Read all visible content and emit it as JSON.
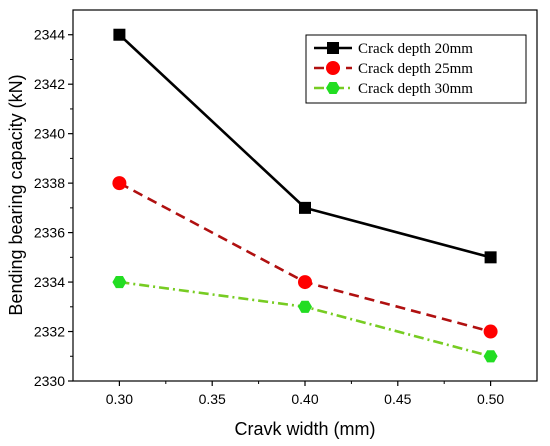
{
  "chart_data": {
    "type": "line",
    "title": "",
    "xlabel": "Cravk width (mm)",
    "ylabel": "Bending bearing capacity (kN)",
    "xlim": [
      0.275,
      0.525
    ],
    "ylim": [
      2330,
      2345
    ],
    "xticks": [
      "0.30",
      "0.35",
      "0.40",
      "0.45",
      "0.50"
    ],
    "yticks": [
      "2330",
      "2332",
      "2334",
      "2336",
      "2338",
      "2340",
      "2342",
      "2344"
    ],
    "legend_position": "top-right",
    "x": [
      0.3,
      0.4,
      0.5
    ],
    "series": [
      {
        "name": "Crack depth 20mm",
        "values": [
          2344,
          2337,
          2335
        ],
        "color": "#000000",
        "marker": "square",
        "line_style": "solid"
      },
      {
        "name": "Crack depth 25mm",
        "values": [
          2338,
          2334,
          2332
        ],
        "color": "#ff0000",
        "line_color": "#b01010",
        "marker": "circle",
        "line_style": "dashed"
      },
      {
        "name": "Crack depth 30mm",
        "values": [
          2334,
          2333,
          2331
        ],
        "color": "#22dd22",
        "line_color": "#77cc22",
        "marker": "hexagon",
        "line_style": "dash-dot"
      }
    ]
  }
}
